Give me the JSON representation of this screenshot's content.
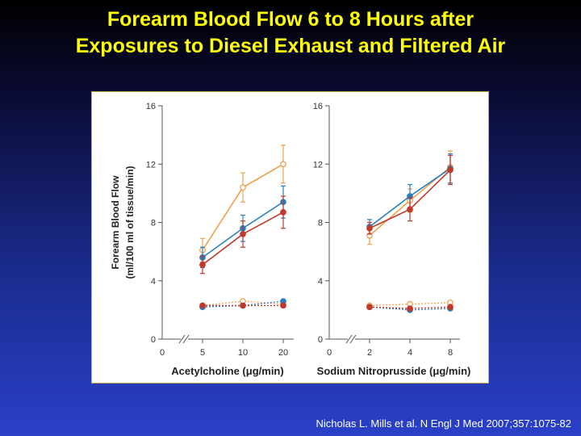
{
  "title": {
    "line1": "Forearm Blood Flow 6 to 8 Hours after",
    "line2": "Exposures to Diesel Exhaust and Filtered Air"
  },
  "citation": "Nicholas L. Mills et al. N Engl J Med 2007;357:1075-82",
  "colors": {
    "orange": "#f0a050",
    "blue": "#2a7fc1",
    "red": "#c0392b",
    "axis": "#555555",
    "title": "#ffff00"
  },
  "chart_data": [
    {
      "type": "line",
      "xlabel": "Acetylcholine (μg/min)",
      "ylabel": "Forearm Blood Flow (ml/100 ml of tissue/min)",
      "ylim": [
        0,
        16
      ],
      "y_ticks": [
        0,
        4,
        8,
        12,
        16
      ],
      "x_ticks": [
        "0",
        "5",
        "10",
        "20"
      ],
      "x": [
        5,
        10,
        20
      ],
      "series": [
        {
          "color": "orange",
          "marker": "open",
          "style": "solid",
          "values": [
            6.1,
            10.4,
            12.0
          ],
          "error": [
            0.8,
            1.0,
            1.3
          ]
        },
        {
          "color": "blue",
          "marker": "filled",
          "style": "solid",
          "values": [
            5.6,
            7.6,
            9.4
          ],
          "error": [
            0.7,
            0.9,
            1.1
          ]
        },
        {
          "color": "red",
          "marker": "filled",
          "style": "solid",
          "values": [
            5.1,
            7.2,
            8.7
          ],
          "error": [
            0.6,
            0.9,
            1.1
          ]
        },
        {
          "color": "orange",
          "marker": "open",
          "style": "dotted",
          "values": [
            2.3,
            2.6,
            2.4
          ]
        },
        {
          "color": "blue",
          "marker": "filled",
          "style": "dotted",
          "values": [
            2.2,
            2.3,
            2.6
          ]
        },
        {
          "color": "red",
          "marker": "filled",
          "style": "dotted",
          "values": [
            2.3,
            2.3,
            2.3
          ]
        }
      ]
    },
    {
      "type": "line",
      "xlabel": "Sodium Nitroprusside (μg/min)",
      "ylim": [
        0,
        16
      ],
      "y_ticks": [
        0,
        4,
        8,
        12,
        16
      ],
      "x_ticks": [
        "0",
        "2",
        "4",
        "8"
      ],
      "x": [
        2,
        4,
        8
      ],
      "series": [
        {
          "color": "orange",
          "marker": "open",
          "style": "solid",
          "values": [
            7.1,
            9.5,
            11.8
          ],
          "error": [
            0.6,
            0.8,
            1.1
          ]
        },
        {
          "color": "blue",
          "marker": "filled",
          "style": "solid",
          "values": [
            7.7,
            9.8,
            11.7
          ],
          "error": [
            0.5,
            0.8,
            1.0
          ]
        },
        {
          "color": "red",
          "marker": "filled",
          "style": "solid",
          "values": [
            7.6,
            8.9,
            11.6
          ],
          "error": [
            0.4,
            0.8,
            1.0
          ]
        },
        {
          "color": "orange",
          "marker": "open",
          "style": "dotted",
          "values": [
            2.3,
            2.4,
            2.5
          ]
        },
        {
          "color": "blue",
          "marker": "filled",
          "style": "dotted",
          "values": [
            2.2,
            2.0,
            2.1
          ]
        },
        {
          "color": "red",
          "marker": "filled",
          "style": "dotted",
          "values": [
            2.2,
            2.1,
            2.2
          ]
        }
      ]
    }
  ]
}
